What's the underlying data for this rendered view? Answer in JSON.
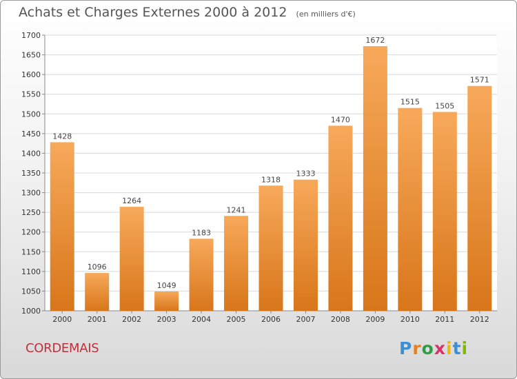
{
  "header": {
    "title": "Achats et Charges Externes 2000 à 2012",
    "subtitle": "(en milliers d'€)"
  },
  "footer": {
    "commune": "CORDEMAIS",
    "brand": "Proxiti",
    "brand_colors": [
      "#3a8fd6",
      "#e67e22",
      "#2e9e44",
      "#d6336c",
      "#f2b705",
      "#3a8fd6",
      "#7fb800"
    ]
  },
  "colors": {
    "bar_top": "#f7a95a",
    "bar_bottom": "#d8761a",
    "grid": "#d8d8d8",
    "axis_text": "#333333",
    "value_text": "#444444"
  },
  "chart_data": {
    "type": "bar",
    "title": "Achats et Charges Externes 2000 à 2012",
    "subtitle": "(en milliers d'€)",
    "xlabel": "",
    "ylabel": "",
    "categories": [
      "2000",
      "2001",
      "2002",
      "2003",
      "2004",
      "2005",
      "2006",
      "2007",
      "2008",
      "2009",
      "2010",
      "2011",
      "2012"
    ],
    "values": [
      1428,
      1096,
      1264,
      1049,
      1183,
      1241,
      1318,
      1333,
      1470,
      1672,
      1515,
      1505,
      1571
    ],
    "ylim": [
      1000,
      1700
    ],
    "yticks": [
      1000,
      1050,
      1100,
      1150,
      1200,
      1250,
      1300,
      1350,
      1400,
      1450,
      1500,
      1550,
      1600,
      1650,
      1700
    ],
    "grid": true,
    "legend": "none"
  }
}
